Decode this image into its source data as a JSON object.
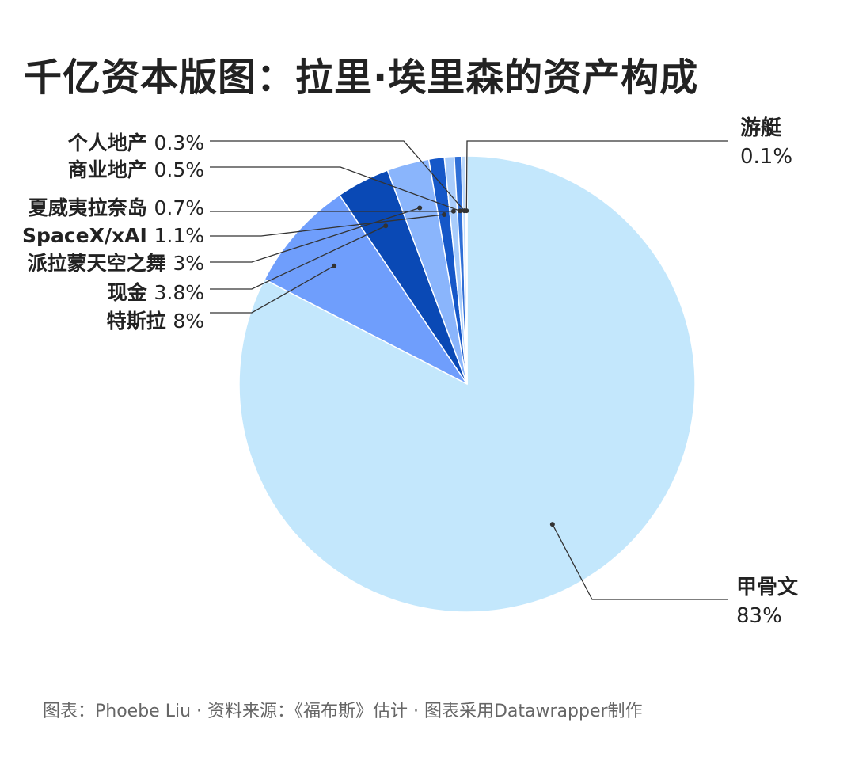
{
  "title": "千亿资本版图：拉里·埃里森的资产构成",
  "footer": "图表：Phoebe Liu · 资料来源：《福布斯》估计 · 图表采用Datawrapper制作",
  "chart_data": {
    "type": "pie",
    "title": "千亿资本版图：拉里·埃里森的资产构成",
    "slices": [
      {
        "label": "甲骨文",
        "value_text": "83%",
        "value": 83,
        "color": "#c3e7fc"
      },
      {
        "label": "特斯拉",
        "value_text": "8%",
        "value": 8,
        "color": "#6f9efc"
      },
      {
        "label": "现金",
        "value_text": "3.8%",
        "value": 3.8,
        "color": "#0a49b5"
      },
      {
        "label": "派拉蒙天空之舞",
        "value_text": "3%",
        "value": 3,
        "color": "#8ab5fc"
      },
      {
        "label": "SpaceX/xAI",
        "value_text": "1.1%",
        "value": 1.1,
        "color": "#1557c8"
      },
      {
        "label": "夏威夷拉奈岛",
        "value_text": "0.7%",
        "value": 0.7,
        "color": "#a9cdfc"
      },
      {
        "label": "商业地产",
        "value_text": "0.5%",
        "value": 0.5,
        "color": "#2f6fd6"
      },
      {
        "label": "个人地产",
        "value_text": "0.3%",
        "value": 0.3,
        "color": "#bcd9fc"
      },
      {
        "label": "游艇",
        "value_text": "0.1%",
        "value": 0.1,
        "color": "#5b8ee6"
      }
    ]
  }
}
